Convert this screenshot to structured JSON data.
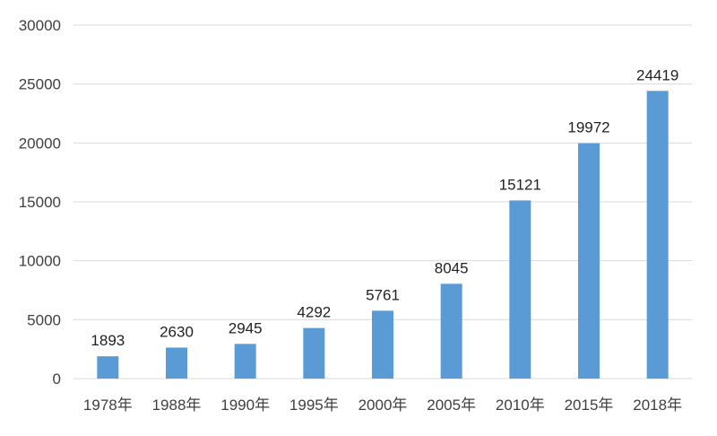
{
  "chart_data": {
    "type": "bar",
    "title": "",
    "xlabel": "",
    "ylabel": "",
    "categories": [
      "1978年",
      "1988年",
      "1990年",
      "1995年",
      "2000年",
      "2005年",
      "2010年",
      "2015年",
      "2018年"
    ],
    "values": [
      1893,
      2630,
      2945,
      4292,
      5761,
      8045,
      15121,
      19972,
      24419
    ],
    "ylim": [
      0,
      30000
    ],
    "yticks": [
      0,
      5000,
      10000,
      15000,
      20000,
      25000,
      30000
    ],
    "grid": true,
    "legend": "none",
    "data_labels": true,
    "colors": {
      "bar": "#5b9bd5",
      "grid": "#d9d9d9",
      "text": "#404040"
    }
  }
}
